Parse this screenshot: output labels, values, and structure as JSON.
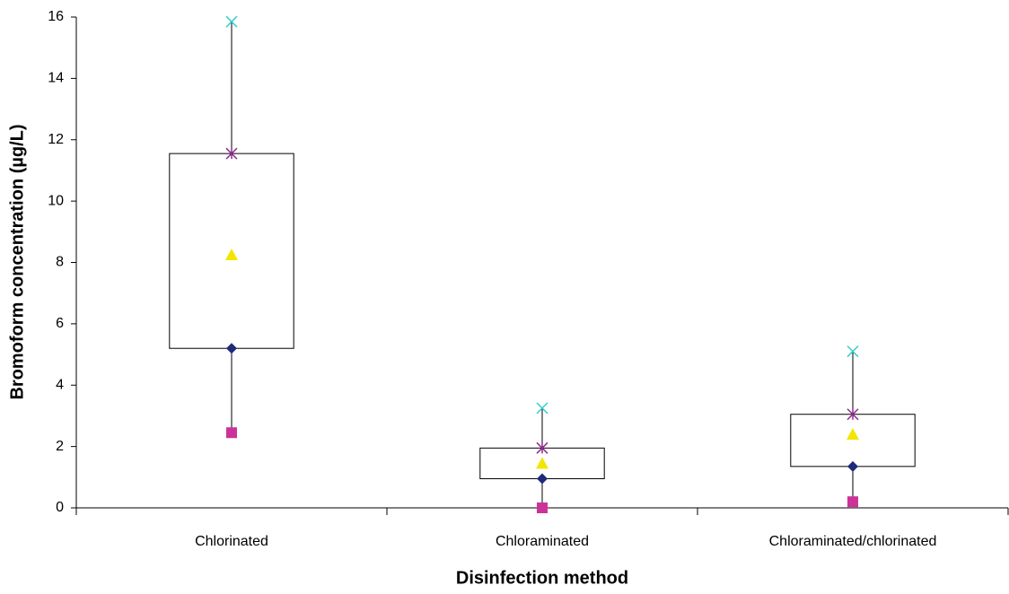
{
  "chart_data": {
    "type": "box",
    "y_label": "Bromoform concentration (µg/L)",
    "x_label": "Disinfection method",
    "categories": [
      "Chlorinated",
      "Chloraminated",
      "Chloraminated/chlorinated"
    ],
    "series": [
      {
        "marker": "square",
        "color": "#cc3399",
        "values": [
          2.45,
          0.0,
          0.2
        ]
      },
      {
        "marker": "diamond",
        "color": "#1f2a7a",
        "values": [
          5.2,
          0.95,
          1.35
        ]
      },
      {
        "marker": "triangle",
        "color": "#f2e600",
        "values": [
          8.25,
          1.45,
          2.4
        ]
      },
      {
        "marker": "star",
        "color": "#8e2a8e",
        "values": [
          11.55,
          1.95,
          3.05
        ]
      },
      {
        "marker": "x",
        "color": "#33cccc",
        "values": [
          15.85,
          3.25,
          5.1
        ]
      }
    ],
    "ylim": [
      0,
      16
    ],
    "yticks": [
      0,
      2,
      4,
      6,
      8,
      10,
      12,
      14,
      16
    ],
    "grid": false
  }
}
